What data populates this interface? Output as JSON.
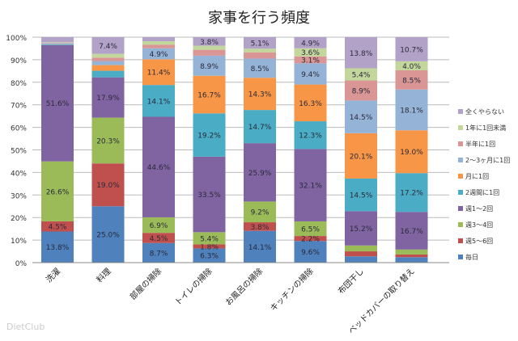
{
  "chart_data": {
    "type": "bar",
    "stacked": true,
    "title": "家事を行う頻度",
    "xlabel": "",
    "ylabel": "",
    "ylim": [
      0,
      100
    ],
    "yticks": [
      "0%",
      "10%",
      "20%",
      "30%",
      "40%",
      "50%",
      "60%",
      "70%",
      "80%",
      "90%",
      "100%"
    ],
    "grid": true,
    "legend_position": "right",
    "categories": [
      "洗濯",
      "料理",
      "部屋の掃除",
      "トイレの掃除",
      "お風呂の掃除",
      "キッチンの掃除",
      "布団干し",
      "ベッドカバーの取り替え"
    ],
    "series": [
      {
        "name": "毎日",
        "color": "#4F81BD",
        "values": [
          13.8,
          25.0,
          8.7,
          6.3,
          14.1,
          9.6,
          2.8,
          2.4
        ],
        "labels": [
          "13.8%",
          "25.0%",
          "8.7%",
          "6.3%",
          "14.1%",
          "9.6%",
          "",
          ""
        ]
      },
      {
        "name": "週5～6回",
        "color": "#C0504D",
        "values": [
          4.5,
          19.0,
          4.5,
          1.8,
          3.8,
          2.2,
          2.2,
          1.2
        ],
        "labels": [
          "4.5%",
          "19.0%",
          "4.5%",
          "1.8%",
          "3.8%",
          "2.2%",
          "",
          ""
        ]
      },
      {
        "name": "週3～4回",
        "color": "#9BBB59",
        "values": [
          26.6,
          20.3,
          6.9,
          5.4,
          9.2,
          6.5,
          2.6,
          2.2
        ],
        "labels": [
          "26.6%",
          "20.3%",
          "6.9%",
          "5.4%",
          "9.2%",
          "6.5%",
          "",
          ""
        ]
      },
      {
        "name": "週1～2回",
        "color": "#8064A2",
        "values": [
          51.6,
          17.9,
          44.6,
          33.5,
          25.9,
          32.1,
          15.2,
          16.7
        ],
        "labels": [
          "51.6%",
          "17.9%",
          "44.6%",
          "33.5%",
          "25.9%",
          "32.1%",
          "15.2%",
          "16.7%"
        ]
      },
      {
        "name": "2週間に1回",
        "color": "#4BACC6",
        "values": [
          0.3,
          2.9,
          14.1,
          19.2,
          14.7,
          12.3,
          14.5,
          17.2
        ],
        "labels": [
          "",
          "",
          "14.1%",
          "19.2%",
          "14.7%",
          "12.3%",
          "14.5%",
          "17.2%"
        ]
      },
      {
        "name": "月に1回",
        "color": "#F79646",
        "values": [
          0.1,
          2.5,
          11.4,
          16.7,
          14.3,
          16.3,
          20.1,
          19.0
        ],
        "labels": [
          "",
          "",
          "11.4%",
          "16.7%",
          "14.3%",
          "16.3%",
          "20.1%",
          "19.0%"
        ]
      },
      {
        "name": "2～3ヶ月に1回",
        "color": "#95B3D7",
        "values": [
          0.5,
          1.8,
          4.9,
          8.9,
          8.5,
          9.4,
          14.5,
          18.1
        ],
        "labels": [
          "",
          "",
          "4.9%",
          "8.9%",
          "8.5%",
          "9.4%",
          "14.5%",
          "18.1%"
        ]
      },
      {
        "name": "半年に1回",
        "color": "#D99694",
        "values": [
          0.2,
          1.5,
          1.6,
          2.6,
          2.8,
          3.1,
          8.9,
          8.5
        ],
        "labels": [
          "",
          "",
          "",
          "",
          "",
          "3.1%",
          "8.9%",
          "8.5%"
        ]
      },
      {
        "name": "1年に1回未満",
        "color": "#C3D69B",
        "values": [
          0.2,
          1.7,
          1.5,
          1.8,
          1.6,
          3.6,
          5.4,
          4.0
        ],
        "labels": [
          "",
          "",
          "",
          "",
          "",
          "3.6%",
          "5.4%",
          "4.0%"
        ]
      },
      {
        "name": "全くやらない",
        "color": "#B2A2C7",
        "values": [
          2.2,
          7.4,
          1.8,
          3.8,
          5.1,
          4.9,
          13.8,
          10.7
        ],
        "labels": [
          "",
          "7.4%",
          "",
          "3.8%",
          "5.1%",
          "4.9%",
          "13.8%",
          "10.7%"
        ]
      }
    ]
  },
  "watermark": "DietClub"
}
